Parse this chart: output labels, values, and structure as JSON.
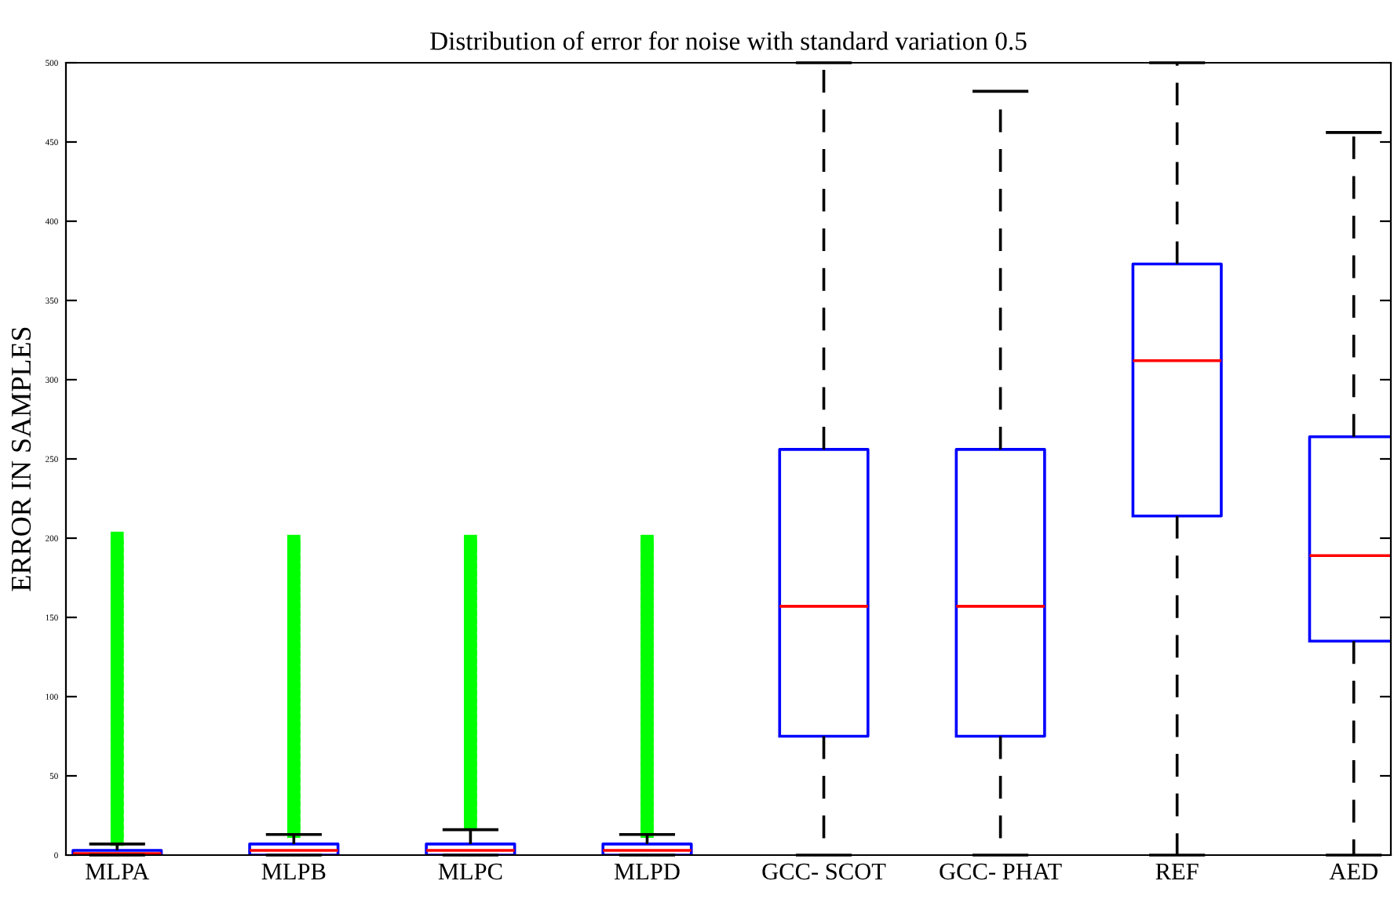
{
  "chart_data": {
    "type": "box",
    "title": "Distribution of error for noise with standard variation 0.5",
    "ylabel": "ERROR IN SAMPLES",
    "categories": [
      "MLPA",
      "MLPB",
      "MLPC",
      "MLPD",
      "GCC- SCOT",
      "GCC- PHAT",
      "REF",
      "AED"
    ],
    "ylim": [
      0,
      500
    ],
    "yticks": [
      0,
      50,
      100,
      150,
      200,
      250,
      300,
      350,
      400,
      450,
      500
    ],
    "grid": false,
    "line_style": "dashed",
    "series": [
      {
        "color": "#0000ff",
        "boxes": [
          {
            "low": 0,
            "q1": 0,
            "median": 1,
            "q3": 3,
            "high": 7,
            "outliers": [
              10,
              15,
              20,
              25,
              30,
              35,
              40,
              45,
              50,
              55,
              60,
              65,
              70,
              75,
              80,
              85,
              90,
              95,
              100,
              105,
              110,
              115,
              120,
              125,
              130,
              135,
              140,
              145,
              150,
              155,
              160,
              165,
              170,
              175,
              180,
              185,
              190,
              195,
              200
            ]
          },
          {
            "low": 0,
            "q1": 0,
            "median": 3,
            "q3": 7,
            "high": 13,
            "outliers": [
              15,
              20,
              25,
              30,
              35,
              40,
              45,
              50,
              55,
              60,
              65,
              70,
              75,
              80,
              85,
              90,
              95,
              100,
              105,
              110,
              115,
              120,
              125,
              130,
              135,
              140,
              145,
              150,
              155,
              160,
              165,
              170,
              175,
              180,
              185,
              190,
              195,
              198
            ]
          },
          {
            "low": 0,
            "q1": 0,
            "median": 3,
            "q3": 7,
            "high": 16,
            "outliers": [
              20,
              25,
              30,
              35,
              40,
              45,
              50,
              55,
              60,
              65,
              70,
              75,
              80,
              85,
              90,
              95,
              100,
              105,
              110,
              115,
              120,
              125,
              130,
              135,
              140,
              145,
              150,
              155,
              160,
              165,
              170,
              175,
              180,
              185,
              190,
              195,
              198
            ]
          },
          {
            "low": 0,
            "q1": 0,
            "median": 3,
            "q3": 7,
            "high": 13,
            "outliers": [
              15,
              20,
              25,
              30,
              35,
              40,
              45,
              50,
              55,
              60,
              65,
              70,
              75,
              80,
              85,
              90,
              95,
              100,
              105,
              110,
              115,
              120,
              125,
              130,
              135,
              140,
              145,
              150,
              155,
              160,
              165,
              170,
              175,
              180,
              185,
              190,
              195,
              198
            ]
          },
          {
            "low": 0,
            "q1": 75,
            "median": 157,
            "q3": 256,
            "high": 500
          },
          {
            "low": 0,
            "q1": 75,
            "median": 157,
            "q3": 256,
            "high": 482
          },
          {
            "low": 0,
            "q1": 214,
            "median": 312,
            "q3": 373,
            "high": 500
          },
          {
            "low": 0,
            "q1": 135,
            "median": 189,
            "q3": 264,
            "high": 456
          }
        ]
      }
    ]
  }
}
